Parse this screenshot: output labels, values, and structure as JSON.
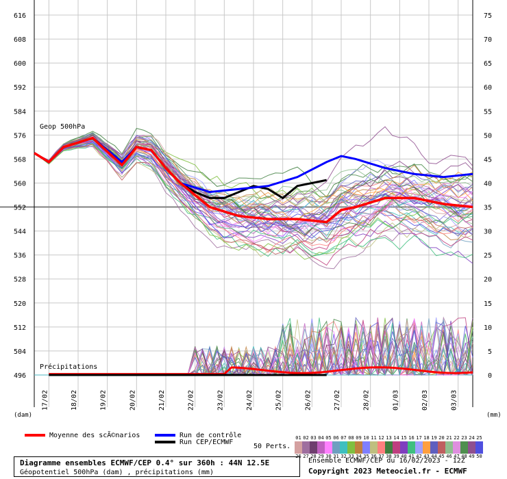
{
  "chart_data": {
    "type": "line",
    "title": "Diagramme ensembles ECMWF/CEP 0.4° sur 360h : 44N 12.5E",
    "subtitle": "Géopotentiel 500hPa (dam) , précipitations (mm)",
    "panel_labels": {
      "geop": "Geop 500hPa",
      "precip": "Précipitations"
    },
    "left_unit": "(dam)",
    "right_unit": "(mm)",
    "left_ticks": [
      616,
      608,
      600,
      592,
      584,
      576,
      568,
      560,
      552,
      544,
      536,
      528,
      520,
      512,
      504,
      496
    ],
    "right_ticks": [
      75,
      70,
      65,
      60,
      55,
      50,
      45,
      40,
      35,
      30,
      25,
      20,
      15,
      10,
      5,
      0
    ],
    "ylim_left": [
      496,
      616
    ],
    "ylim_right": [
      0,
      75
    ],
    "x_ticks": [
      "17/02",
      "18/02",
      "19/02",
      "20/02",
      "21/02",
      "22/02",
      "23/02",
      "24/02",
      "25/02",
      "26/02",
      "27/02",
      "28/02",
      "01/03",
      "02/03",
      "03/03"
    ],
    "reference_line": 552,
    "series": [
      {
        "name": "Moyenne des scÃ©narios",
        "color": "#ff0000",
        "x_hours": [
          0,
          12,
          24,
          48,
          72,
          84,
          96,
          108,
          120,
          144,
          168,
          192,
          216,
          240,
          252,
          264,
          288,
          312,
          336,
          360
        ],
        "values": [
          570,
          567,
          572,
          575,
          566,
          572,
          571,
          565,
          560,
          552,
          549,
          548,
          548,
          547,
          551,
          552,
          555,
          555,
          553,
          552
        ]
      },
      {
        "name": "Run de contrôle",
        "color": "#0000ff",
        "x_hours": [
          0,
          12,
          24,
          48,
          72,
          84,
          96,
          108,
          120,
          144,
          168,
          192,
          216,
          240,
          252,
          264,
          288,
          312,
          336,
          360
        ],
        "values": [
          570,
          567,
          572,
          575,
          567,
          572,
          571,
          565,
          560,
          557,
          558,
          559,
          562,
          567,
          569,
          568,
          565,
          563,
          562,
          563
        ]
      },
      {
        "name": "Run CEP/ECMWF",
        "color": "#000000",
        "x_hours": [
          0,
          12,
          24,
          48,
          72,
          84,
          96,
          108,
          120,
          132,
          144,
          156,
          168,
          180,
          192,
          204,
          216,
          228,
          240
        ],
        "values": [
          570,
          567,
          572,
          575,
          567,
          572,
          571,
          565,
          560,
          557,
          555,
          555,
          557,
          559,
          558,
          555,
          559,
          560,
          561
        ]
      }
    ],
    "perturbations_label": "50 Perts.",
    "pert_numbers": [
      "01",
      "02",
      "03",
      "04",
      "05",
      "06",
      "07",
      "08",
      "09",
      "10",
      "11",
      "12",
      "13",
      "14",
      "15",
      "16",
      "17",
      "18",
      "19",
      "20",
      "21",
      "22",
      "23",
      "24",
      "25",
      "26",
      "27",
      "28",
      "29",
      "30",
      "31",
      "32",
      "33",
      "34",
      "35",
      "36",
      "37",
      "38",
      "39",
      "40",
      "41",
      "42",
      "43",
      "44",
      "45",
      "46",
      "47",
      "48",
      "49",
      "50"
    ]
  },
  "legend": {
    "mean": "Moyenne des scÃ©narios",
    "control": "Run de contrôle",
    "det": "Run CEP/ECMWF"
  },
  "footer": {
    "ensemble_info": "Ensemble ECMWF/CEP du 16/02/2023 - 12Z",
    "copyright": "Copyright 2023 Meteociel.fr - ECMWF"
  },
  "colors": {
    "mean": "#ff0000",
    "control": "#0000ff",
    "det": "#000000",
    "grid": "#c8c8c8",
    "pert_palette": [
      "#d4a0a0",
      "#9f6f9f",
      "#6f3f6f",
      "#c060c0",
      "#ff80ff",
      "#6f9fc0",
      "#3fbfbf",
      "#7fbf3f",
      "#bf7f3f",
      "#7f7fff",
      "#bfbf7f",
      "#ff7f7f",
      "#3f7f3f",
      "#bf3f7f",
      "#7f3fbf",
      "#3fbf7f",
      "#9f9fff",
      "#ff9f3f",
      "#5f5fbf",
      "#bf5f5f",
      "#8fbf8f",
      "#df8fdf",
      "#4f8f4f",
      "#8f4f8f",
      "#4f4fdf"
    ]
  }
}
